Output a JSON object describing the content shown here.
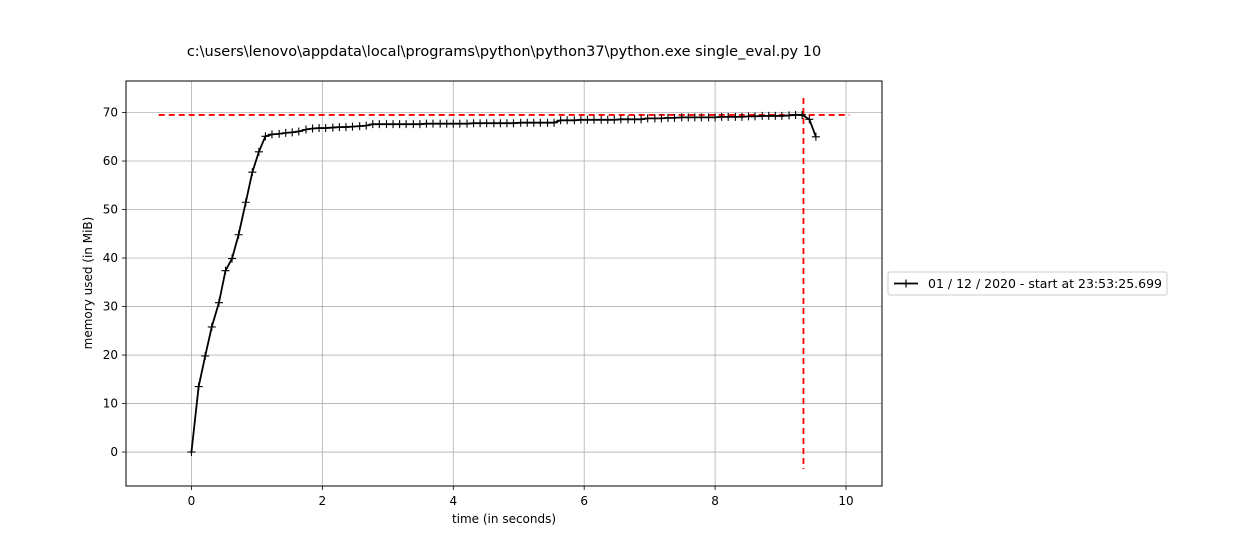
{
  "chart_data": {
    "type": "line",
    "title": "c:\\users\\lenovo\\appdata\\local\\programs\\python\\python37\\python.exe single_eval.py 10",
    "xlabel": "time (in seconds)",
    "ylabel": "memory used (in MiB)",
    "xlim": [
      -1,
      10.55
    ],
    "ylim": [
      -7,
      76.5
    ],
    "xticks": [
      0,
      2,
      4,
      6,
      8,
      10
    ],
    "yticks": [
      0,
      10,
      20,
      30,
      40,
      50,
      60,
      70
    ],
    "xtick_labels": [
      "0",
      "2",
      "4",
      "6",
      "8",
      "10"
    ],
    "ytick_labels": [
      "0",
      "10",
      "20",
      "30",
      "40",
      "50",
      "60",
      "70"
    ],
    "grid": true,
    "legend_placement": "right, outside plot",
    "colors": {
      "series": "#000000",
      "peak_markers": "#ff0000",
      "grid": "#b0b0b0"
    },
    "series": [
      {
        "name": "01 / 12 / 2020 - start at 23:53:25.699",
        "marker": "+",
        "x": [
          0.0,
          0.11,
          0.21,
          0.31,
          0.42,
          0.52,
          0.62,
          0.72,
          0.83,
          0.93,
          1.03,
          1.13,
          1.23,
          1.34,
          1.44,
          1.54,
          1.64,
          1.75,
          1.85,
          1.95,
          2.05,
          2.16,
          2.26,
          2.36,
          2.46,
          2.57,
          2.67,
          2.77,
          2.87,
          2.98,
          3.08,
          3.18,
          3.28,
          3.39,
          3.49,
          3.59,
          3.69,
          3.8,
          3.9,
          4.0,
          4.1,
          4.21,
          4.31,
          4.41,
          4.51,
          4.62,
          4.72,
          4.82,
          4.92,
          5.03,
          5.13,
          5.23,
          5.33,
          5.44,
          5.54,
          5.64,
          5.74,
          5.85,
          5.95,
          6.05,
          6.15,
          6.26,
          6.36,
          6.46,
          6.56,
          6.67,
          6.77,
          6.87,
          6.97,
          7.08,
          7.18,
          7.28,
          7.38,
          7.49,
          7.59,
          7.69,
          7.79,
          7.9,
          8.0,
          8.1,
          8.2,
          8.31,
          8.41,
          8.51,
          8.61,
          8.72,
          8.82,
          8.92,
          9.02,
          9.13,
          9.23,
          9.33,
          9.44,
          9.54
        ],
        "y": [
          0.0,
          13.5,
          19.8,
          25.8,
          30.8,
          37.4,
          39.9,
          44.8,
          51.5,
          57.7,
          61.9,
          65.1,
          65.5,
          65.6,
          65.8,
          65.9,
          66.1,
          66.5,
          66.7,
          66.8,
          66.8,
          66.9,
          67.0,
          67.0,
          67.1,
          67.2,
          67.3,
          67.6,
          67.6,
          67.6,
          67.6,
          67.6,
          67.6,
          67.6,
          67.6,
          67.7,
          67.7,
          67.7,
          67.7,
          67.7,
          67.7,
          67.7,
          67.8,
          67.8,
          67.8,
          67.8,
          67.8,
          67.8,
          67.8,
          67.9,
          67.9,
          67.9,
          67.9,
          67.9,
          67.9,
          68.4,
          68.4,
          68.4,
          68.5,
          68.5,
          68.5,
          68.5,
          68.5,
          68.5,
          68.6,
          68.6,
          68.6,
          68.6,
          68.8,
          68.8,
          68.8,
          68.9,
          68.9,
          69.0,
          69.0,
          69.0,
          69.0,
          69.0,
          69.0,
          69.1,
          69.1,
          69.1,
          69.1,
          69.2,
          69.2,
          69.3,
          69.3,
          69.3,
          69.3,
          69.4,
          69.5,
          69.5,
          68.6,
          65.0
        ]
      }
    ],
    "peak_memory": 69.5,
    "peak_time": 9.35,
    "peak_hline_xrange": [
      -0.5,
      10.05
    ],
    "peak_vline_yrange": [
      -3.5,
      73
    ]
  }
}
